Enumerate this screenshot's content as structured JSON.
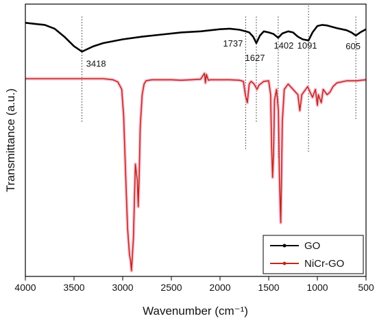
{
  "chart_data": {
    "type": "line",
    "title": "",
    "xlabel": "Wavenumber (cm⁻¹)",
    "ylabel": "Transmittance (a.u.)",
    "xlim": [
      4000,
      500
    ],
    "x_reversed": true,
    "x_ticks": [
      4000,
      3500,
      3000,
      2500,
      2000,
      1500,
      1000,
      500
    ],
    "y_ticks_shown": false,
    "grid": false,
    "legend_position": "bottom-right",
    "series": [
      {
        "name": "GO",
        "color": "#000000",
        "x": [
          4000,
          3900,
          3800,
          3700,
          3600,
          3500,
          3418,
          3300,
          3200,
          3000,
          2800,
          2600,
          2400,
          2200,
          2000,
          1900,
          1800,
          1737,
          1700,
          1660,
          1627,
          1590,
          1550,
          1500,
          1450,
          1402,
          1360,
          1300,
          1250,
          1200,
          1150,
          1091,
          1050,
          1000,
          950,
          900,
          800,
          700,
          650,
          605,
          560,
          500
        ],
        "y": [
          6,
          4,
          2,
          -5,
          -20,
          -38,
          -48,
          -38,
          -32,
          -25,
          -20,
          -16,
          -12,
          -10,
          -6,
          -5,
          -7,
          -10,
          -12,
          -20,
          -32,
          -18,
          -10,
          -12,
          -15,
          -22,
          -14,
          -10,
          -12,
          -20,
          -25,
          -27,
          -12,
          0,
          2,
          1,
          -4,
          -8,
          -12,
          -18,
          -12,
          -6
        ]
      },
      {
        "name": "NiCr-GO",
        "color": "#c0281c",
        "x": [
          4000,
          3800,
          3600,
          3400,
          3200,
          3100,
          3050,
          3010,
          2990,
          2970,
          2950,
          2930,
          2920,
          2910,
          2900,
          2890,
          2870,
          2850,
          2840,
          2830,
          2820,
          2800,
          2780,
          2760,
          2700,
          2600,
          2500,
          2400,
          2300,
          2200,
          2160,
          2150,
          2140,
          2120,
          2100,
          2000,
          1900,
          1800,
          1760,
          1740,
          1720,
          1700,
          1680,
          1650,
          1620,
          1600,
          1550,
          1500,
          1480,
          1470,
          1460,
          1450,
          1440,
          1420,
          1400,
          1390,
          1380,
          1376,
          1370,
          1360,
          1340,
          1300,
          1250,
          1200,
          1180,
          1160,
          1100,
          1050,
          1020,
          1000,
          990,
          960,
          940,
          900,
          870,
          840,
          800,
          700,
          600,
          500
        ],
        "y": [
          0,
          0,
          0,
          0,
          0,
          -2,
          -6,
          -20,
          -70,
          -180,
          -280,
          -330,
          -340,
          -360,
          -330,
          -300,
          -160,
          -190,
          -240,
          -180,
          -90,
          -30,
          -10,
          -4,
          -2,
          -2,
          -2,
          -3,
          -2,
          -1,
          10,
          -8,
          8,
          -3,
          -2,
          -2,
          -2,
          -3,
          -5,
          -30,
          -45,
          -10,
          -5,
          -10,
          -20,
          -12,
          -5,
          -4,
          -30,
          -130,
          -185,
          -140,
          -40,
          -20,
          -60,
          -180,
          -250,
          -270,
          -200,
          -80,
          -20,
          -10,
          -20,
          -30,
          -60,
          -30,
          -15,
          -35,
          -20,
          -50,
          -30,
          -45,
          -20,
          -30,
          -25,
          -15,
          -8,
          -4,
          -4,
          -2
        ]
      }
    ],
    "annotations": [
      {
        "label": "3418",
        "x": 3418,
        "series": "GO"
      },
      {
        "label": "1737",
        "x": 1737,
        "series": "GO"
      },
      {
        "label": "1627",
        "x": 1627,
        "series": "GO"
      },
      {
        "label": "1402",
        "x": 1402,
        "series": "GO"
      },
      {
        "label": "1091",
        "x": 1091,
        "series": "GO"
      },
      {
        "label": "605",
        "x": 605,
        "series": "GO"
      }
    ]
  }
}
